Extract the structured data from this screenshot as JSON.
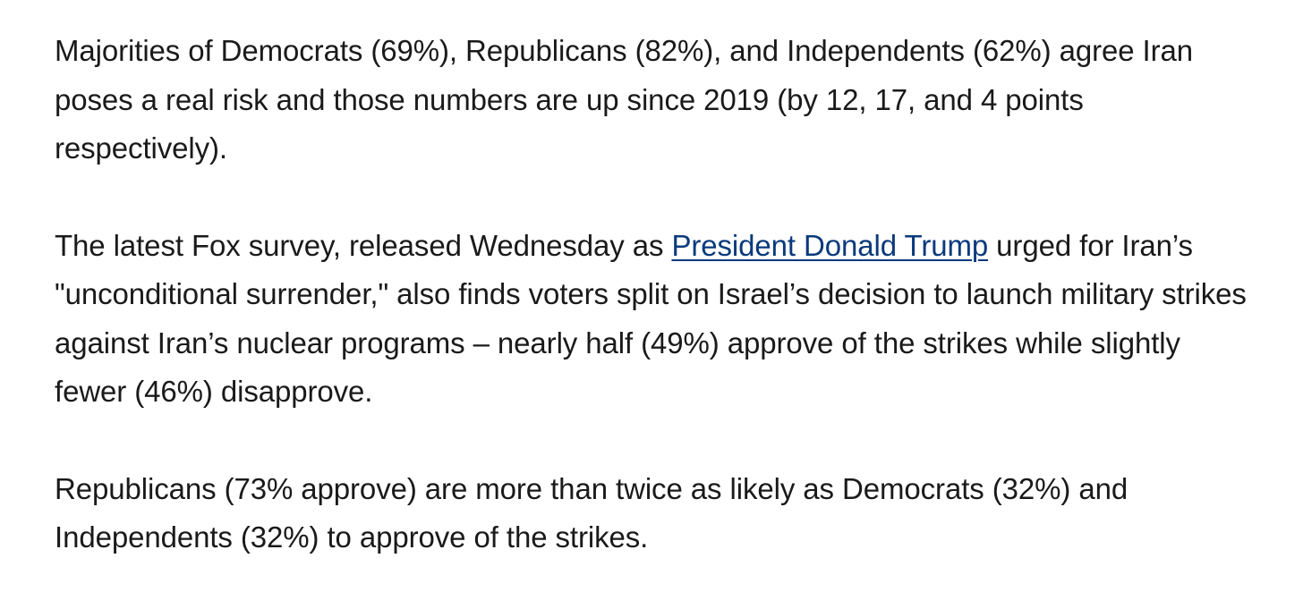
{
  "article": {
    "paragraph_1": "Majorities of Democrats (69%), Republicans (82%), and Independents (62%) agree Iran poses a real risk and those numbers are up since 2019 (by 12, 17, and 4 points respectively).",
    "paragraph_2": {
      "text_before_link": "The latest Fox survey, released Wednesday as ",
      "link_text": "President Donald Trump",
      "text_after_link": " urged for Iran’s \"unconditional surrender,\" also finds voters split on Israel’s decision to launch military strikes against Iran’s nuclear programs – nearly half (49%) approve of the strikes while slightly fewer (46%) disapprove."
    },
    "paragraph_3": "Republicans (73% approve) are more than twice as likely as Democrats (32%) and Independents (32%) to approve of the strikes."
  },
  "colors": {
    "text": "#1a1a1a",
    "link": "#0a3a7c",
    "background": "#ffffff"
  }
}
